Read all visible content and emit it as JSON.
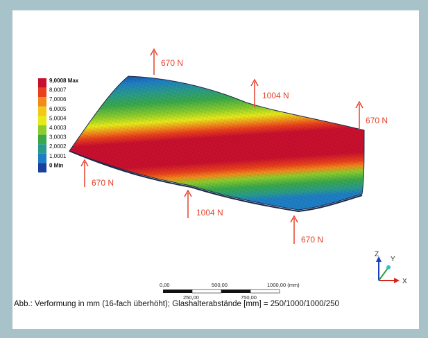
{
  "legend": {
    "entries": [
      {
        "label": "9,0008 Max",
        "color": "#c8102e"
      },
      {
        "label": "8,0007",
        "color": "#e8401c"
      },
      {
        "label": "7,0006",
        "color": "#f08a1c"
      },
      {
        "label": "6,0005",
        "color": "#f2c81a"
      },
      {
        "label": "5,0004",
        "color": "#e6ea1a"
      },
      {
        "label": "4,0003",
        "color": "#8ccc2c"
      },
      {
        "label": "3,0003",
        "color": "#3aa84a"
      },
      {
        "label": "2,0002",
        "color": "#2a9a8c"
      },
      {
        "label": "1,0001",
        "color": "#1e7ec4"
      },
      {
        "label": "0 Min",
        "color": "#1a3f9e"
      }
    ]
  },
  "forces": {
    "top_left": "670 N",
    "top_middle": "1004 N",
    "right": "670 N",
    "left": "670 N",
    "bottom_middle": "1004 N",
    "bottom_right": "670 N"
  },
  "scale_bar": {
    "label_0": "0,00",
    "label_500": "500,00",
    "label_1000": "1000,00 (mm)",
    "label_250": "250,00",
    "label_750": "750,00"
  },
  "axes": {
    "z": "Z",
    "y": "Y",
    "x": "X"
  },
  "caption": "Abb.: Verformung in mm (16-fach überhöht); Glashalterabstände [mm] = 250/1000/1000/250",
  "colors": {
    "arrow": "#e8402a",
    "frame": "#a7c2c8",
    "mesh_red": "#c8102e",
    "mesh_blue": "#1a3f9e"
  }
}
